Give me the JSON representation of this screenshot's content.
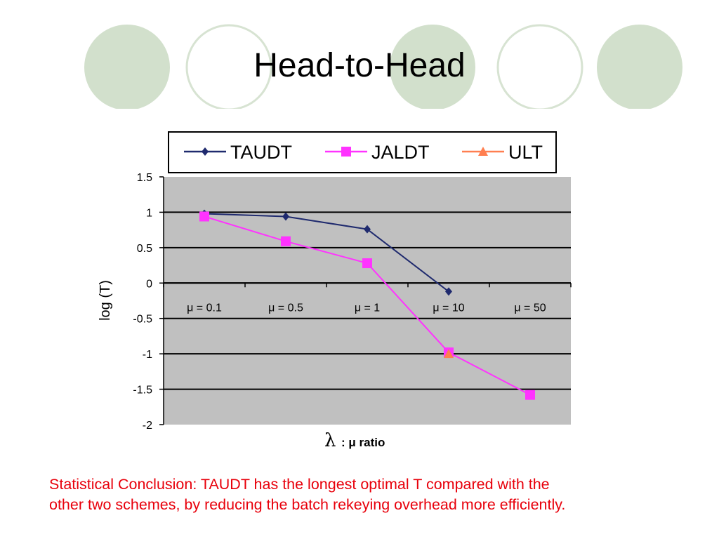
{
  "slide": {
    "title": "Head-to-Head",
    "conclusion_line1": "Statistical Conclusion: TAUDT has the longest optimal T compared with the",
    "conclusion_line2": "other two schemes, by reducing the batch rekeying overhead more efficiently.",
    "colors": {
      "circle_fill": "#d2e0cc",
      "circle_outline": "#d7e3d2",
      "conclusion_text": "#e8000b"
    }
  },
  "chart_data": {
    "type": "line",
    "title": "",
    "xlabel_symbol": "λ",
    "xlabel_text": ": μ ratio",
    "ylabel": "log (T)",
    "categories": [
      "μ = 0.1",
      "μ = 0.5",
      "μ = 1",
      "μ = 10",
      "μ = 50"
    ],
    "y_ticks": [
      "1.5",
      "1",
      "0.5",
      "0",
      "-0.5",
      "-1",
      "-1.5",
      "-2"
    ],
    "ylim": [
      -2,
      1.5
    ],
    "grid": true,
    "legend_position": "top",
    "plot_background": "#c0c0c0",
    "series": [
      {
        "name": "TAUDT",
        "color": "#1f2a6e",
        "marker": "diamond",
        "values": [
          0.98,
          0.94,
          0.76,
          -0.12,
          null
        ]
      },
      {
        "name": "JALDT",
        "color": "#ff33ff",
        "marker": "square",
        "values": [
          0.94,
          0.59,
          0.28,
          -0.98,
          -1.58
        ]
      },
      {
        "name": "ULT",
        "color": "#ff7f50",
        "marker": "triangle",
        "values": [
          null,
          null,
          null,
          -1.0,
          null
        ]
      }
    ]
  }
}
